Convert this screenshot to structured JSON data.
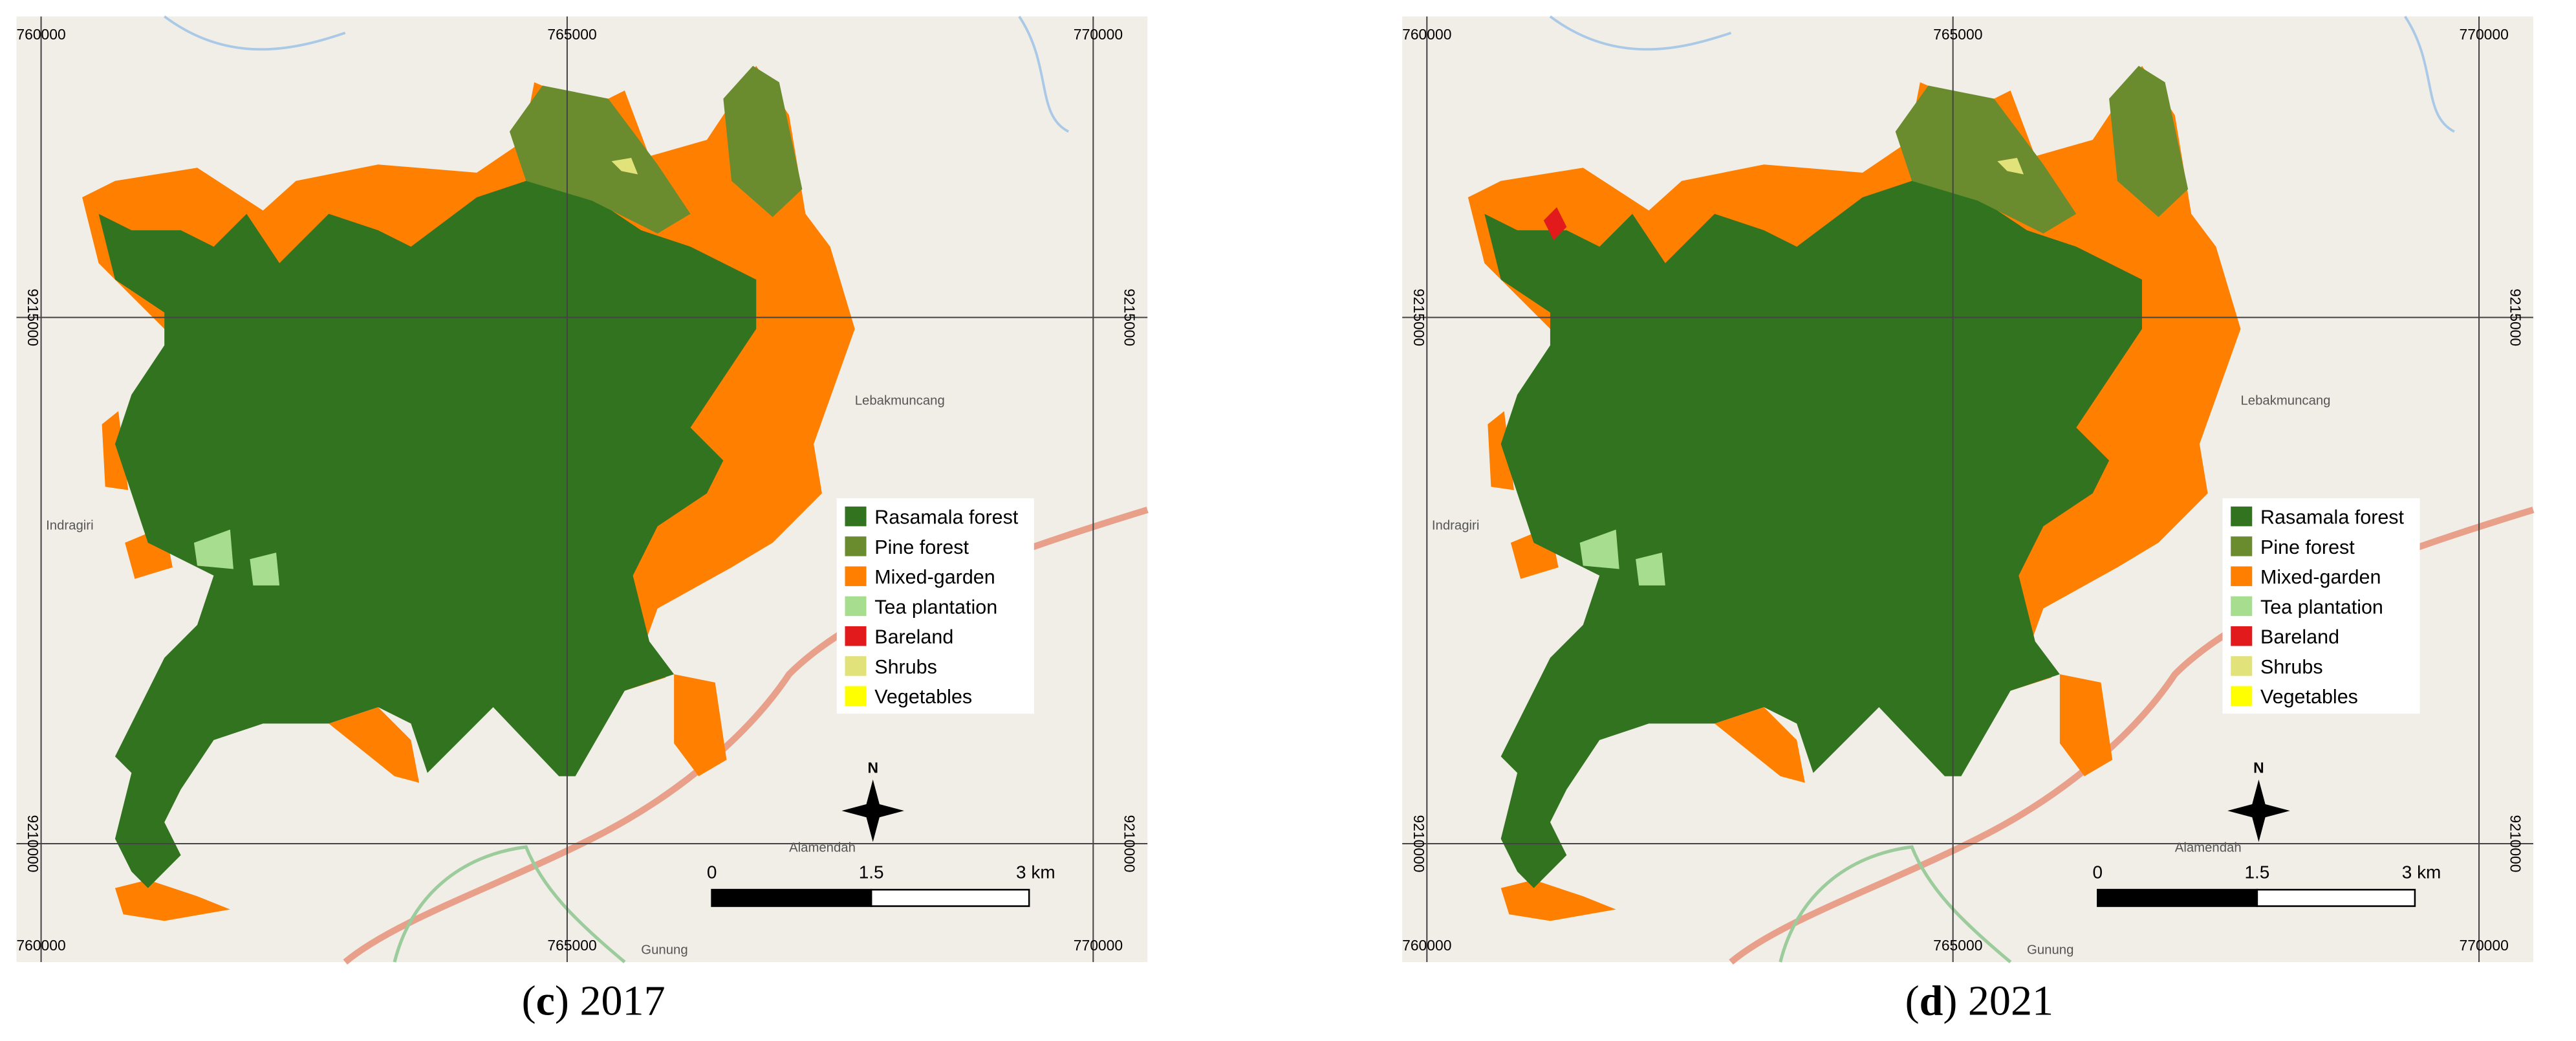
{
  "x_labels": [
    "760000",
    "765000",
    "770000"
  ],
  "y_labels": [
    "9215000",
    "9210000"
  ],
  "places": [
    "Lebakmuncang",
    "Indragiri",
    "Alamendah",
    "Gunung"
  ],
  "legend": [
    {
      "label": "Rasamala forest",
      "color": "#32731f"
    },
    {
      "label": "Pine forest",
      "color": "#6a8c2e"
    },
    {
      "label": "Mixed-garden",
      "color": "#ff8000"
    },
    {
      "label": "Tea plantation",
      "color": "#a6dd8f"
    },
    {
      "label": "Bareland",
      "color": "#e31a1c"
    },
    {
      "label": "Shrubs",
      "color": "#e2e27a"
    },
    {
      "label": "Vegetables",
      "color": "#ffff00"
    }
  ],
  "scale": [
    "0",
    "1.5",
    "3 km"
  ],
  "north": "N",
  "panels": [
    {
      "caption": [
        "(",
        "c",
        ") 2017"
      ]
    },
    {
      "caption": [
        "(",
        "d",
        ") 2021"
      ]
    }
  ]
}
